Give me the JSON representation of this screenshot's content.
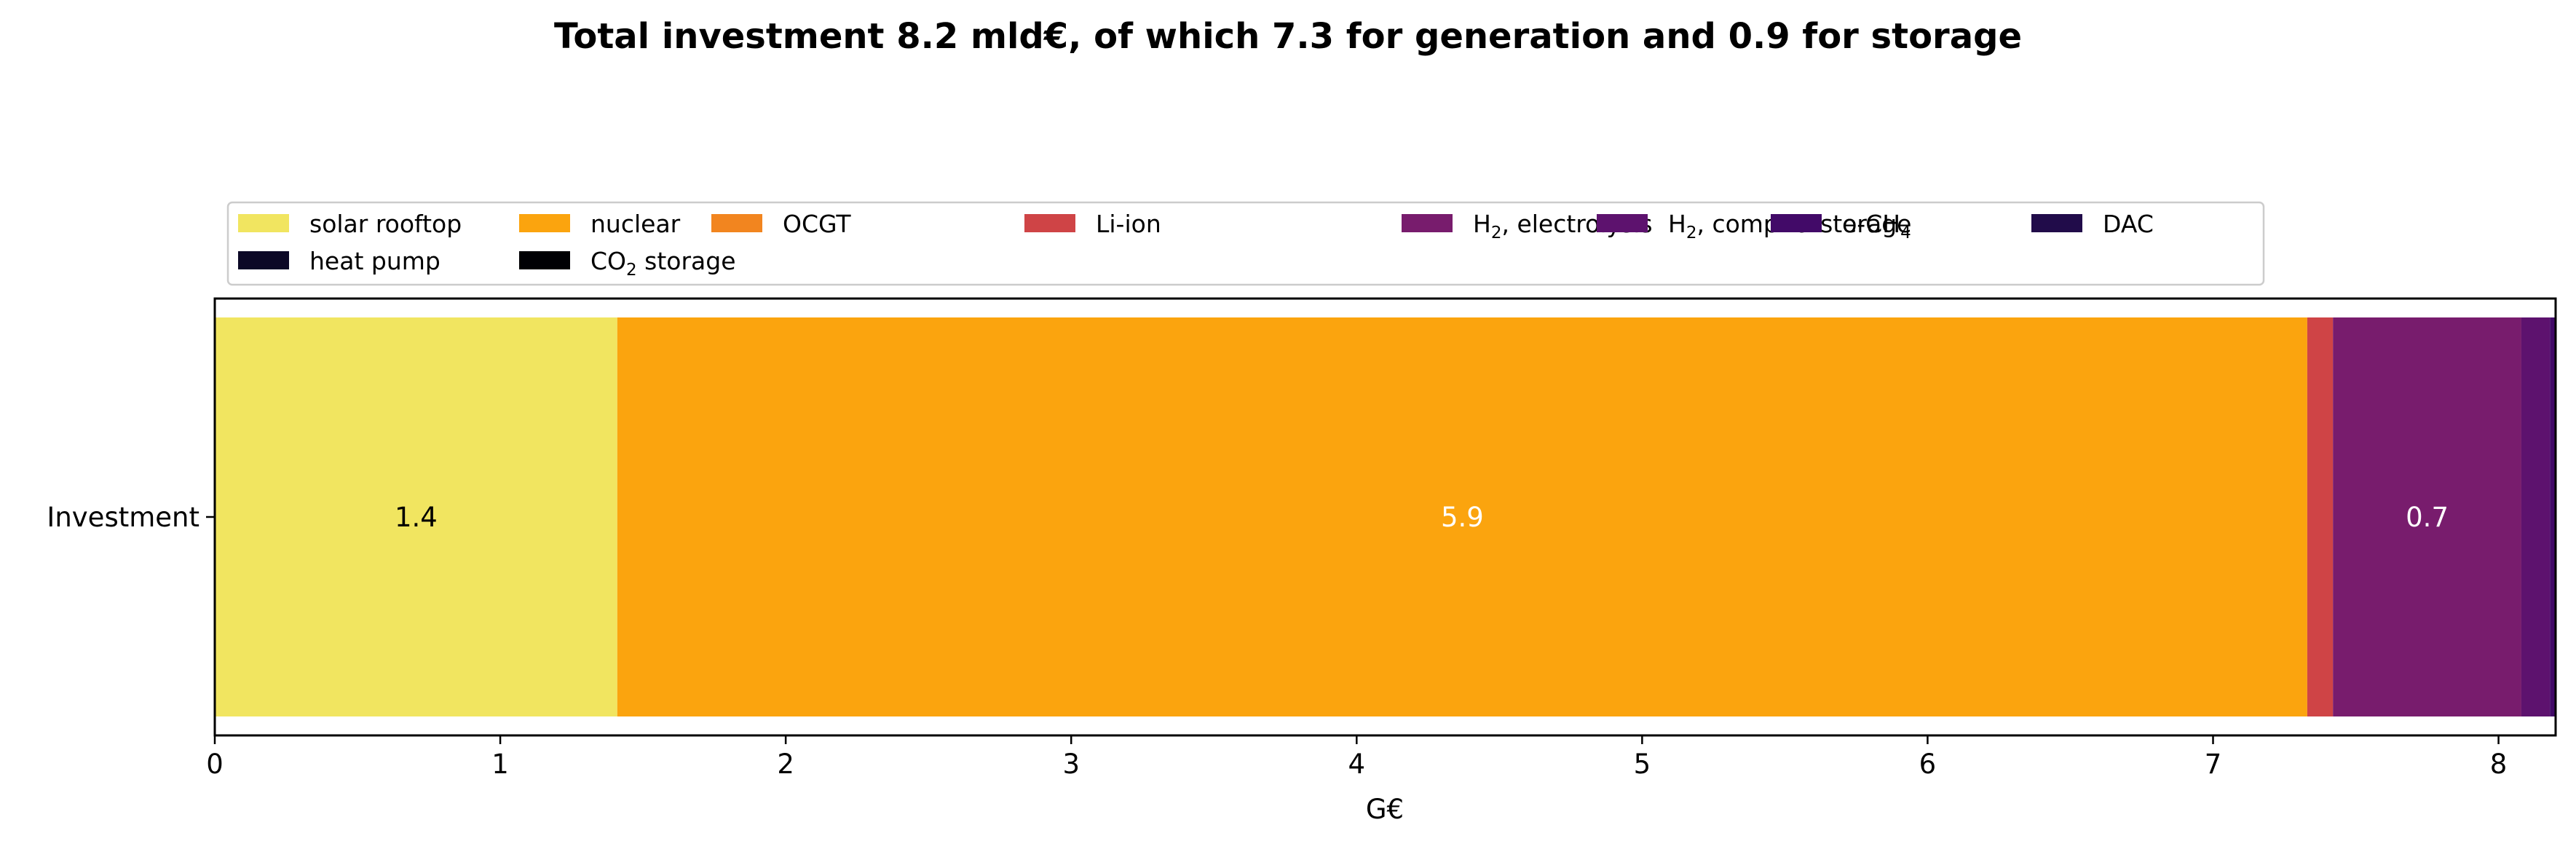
{
  "chart_data": {
    "type": "bar",
    "orientation": "horizontal",
    "stacked": true,
    "title": "Total investment 8.2 mld€, of which 7.3 for generation and 0.9 for storage",
    "xlabel": "G€",
    "ylabel": "",
    "xlim": [
      0,
      8.2
    ],
    "xticks": [
      0,
      1,
      2,
      3,
      4,
      5,
      6,
      7,
      8
    ],
    "categories": [
      "Investment"
    ],
    "grid": false,
    "legend_position": "top",
    "series": [
      {
        "name": "solar rooftop",
        "legend_main": "solar rooftop",
        "legend_sub": "",
        "legend_rest": "",
        "values": [
          1.41
        ],
        "color": "#f1e560",
        "label": "1.4",
        "label_color": "#000000"
      },
      {
        "name": "nuclear",
        "legend_main": "nuclear",
        "legend_sub": "",
        "legend_rest": "",
        "values": [
          5.92
        ],
        "color": "#fba40e",
        "label": "5.9",
        "label_color": "#ffffff"
      },
      {
        "name": "OCGT",
        "legend_main": "OCGT",
        "legend_sub": "",
        "legend_rest": "",
        "values": [
          0.0
        ],
        "color": "#f2851f",
        "label": "",
        "label_color": "#ffffff"
      },
      {
        "name": "Li-ion",
        "legend_main": "Li-ion",
        "legend_sub": "",
        "legend_rest": "",
        "values": [
          0.09
        ],
        "color": "#cf4446",
        "label": "",
        "label_color": "#ffffff"
      },
      {
        "name": "H2, electrolysis",
        "legend_main": "H",
        "legend_sub": "2",
        "legend_rest": ", electrolysis",
        "values": [
          0.66
        ],
        "color": "#781c6d",
        "label": "0.7",
        "label_color": "#ffffff"
      },
      {
        "name": "H2, comp. & storage",
        "legend_main": "H",
        "legend_sub": "2",
        "legend_rest": ", comp. & storage",
        "values": [
          0.1
        ],
        "color": "#5d126e",
        "label": "",
        "label_color": "#ffffff"
      },
      {
        "name": "e-CH4",
        "legend_main": "e-CH",
        "legend_sub": "4",
        "legend_rest": "",
        "values": [
          0.02
        ],
        "color": "#420a68",
        "label": "",
        "label_color": "#ffffff"
      },
      {
        "name": "DAC",
        "legend_main": "DAC",
        "legend_sub": "",
        "legend_rest": "",
        "values": [
          0.0
        ],
        "color": "#210c4a",
        "label": "",
        "label_color": "#ffffff"
      },
      {
        "name": "heat pump",
        "legend_main": "heat pump",
        "legend_sub": "",
        "legend_rest": "",
        "values": [
          0.0
        ],
        "color": "#0c0826",
        "label": "",
        "label_color": "#ffffff"
      },
      {
        "name": "CO2 storage",
        "legend_main": "CO",
        "legend_sub": "2",
        "legend_rest": " storage",
        "values": [
          0.0
        ],
        "color": "#000004",
        "label": "",
        "label_color": "#ffffff"
      }
    ]
  }
}
